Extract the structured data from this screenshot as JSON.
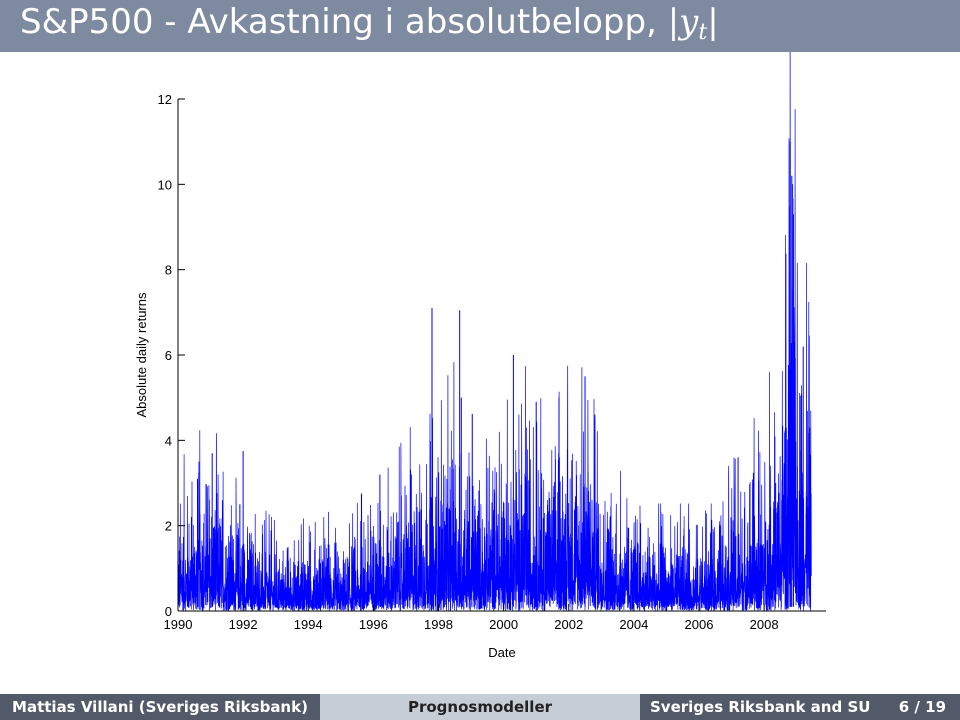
{
  "slide": {
    "title_text": "S&P500 - Avkastning i absolutbelopp, ",
    "title_math": "|y",
    "title_math_sub": "t",
    "title_math_end": "|"
  },
  "footer": {
    "author": "Mattias Villani  (Sveriges Riksbank)",
    "talk": "Prognosmodeller",
    "institute": "Sveriges Riksbank and SU",
    "page": "6 / 19"
  },
  "chart_data": {
    "type": "line",
    "title": "",
    "xlabel": "Date",
    "ylabel": "Absolute daily returns",
    "xlim": [
      1990,
      2009.9
    ],
    "ylim": [
      0,
      12
    ],
    "x_ticks": [
      1990,
      1992,
      1994,
      1996,
      1998,
      2000,
      2002,
      2004,
      2006,
      2008
    ],
    "y_ticks": [
      0,
      2,
      4,
      6,
      8,
      10,
      12
    ],
    "grid": false,
    "line_color": "#0000ff",
    "series": [
      {
        "x": [
          1990.0,
          1990.5,
          1991.0,
          1991.5,
          1992.0,
          1992.5,
          1993.0,
          1993.5,
          1994.0,
          1994.5,
          1995.0,
          1995.5,
          1996.0,
          1996.5,
          1997.0,
          1997.5,
          1998.0,
          1998.5,
          1999.0,
          1999.5,
          2000.0,
          2000.5,
          2001.0,
          2001.5,
          2002.0,
          2002.5,
          2003.0,
          2003.5,
          2004.0,
          2004.5,
          2005.0,
          2005.5,
          2006.0,
          2006.5,
          2007.0,
          2007.5,
          2008.0,
          2008.5,
          2008.8,
          2009.0,
          2009.5
        ],
        "y": [
          0.8,
          1.0,
          1.1,
          0.8,
          0.7,
          0.6,
          0.5,
          0.5,
          0.6,
          0.6,
          0.4,
          0.6,
          0.8,
          0.8,
          1.0,
          1.1,
          1.2,
          1.4,
          1.1,
          1.1,
          1.3,
          1.4,
          1.3,
          1.2,
          1.5,
          1.6,
          1.1,
          0.8,
          0.7,
          0.6,
          0.6,
          0.6,
          0.6,
          0.6,
          0.9,
          1.0,
          1.2,
          1.6,
          3.4,
          2.6,
          1.5
        ],
        "spikes": [
          {
            "x": 1990.6,
            "y": 3.1
          },
          {
            "x": 1991.05,
            "y": 3.7
          },
          {
            "x": 1991.9,
            "y": 2.5
          },
          {
            "x": 1992.0,
            "y": 3.75
          },
          {
            "x": 1996.2,
            "y": 3.2
          },
          {
            "x": 1997.8,
            "y": 7.1
          },
          {
            "x": 1998.65,
            "y": 7.05
          },
          {
            "x": 1998.7,
            "y": 5.0
          },
          {
            "x": 2000.3,
            "y": 6.0
          },
          {
            "x": 2001.0,
            "y": 4.9
          },
          {
            "x": 2001.7,
            "y": 5.0
          },
          {
            "x": 2002.5,
            "y": 5.5
          },
          {
            "x": 2002.8,
            "y": 4.6
          },
          {
            "x": 2007.2,
            "y": 3.6
          },
          {
            "x": 2008.8,
            "y": 11.0
          },
          {
            "x": 2008.85,
            "y": 10.2
          },
          {
            "x": 2008.9,
            "y": 9.3
          },
          {
            "x": 2009.2,
            "y": 6.2
          }
        ]
      }
    ]
  }
}
